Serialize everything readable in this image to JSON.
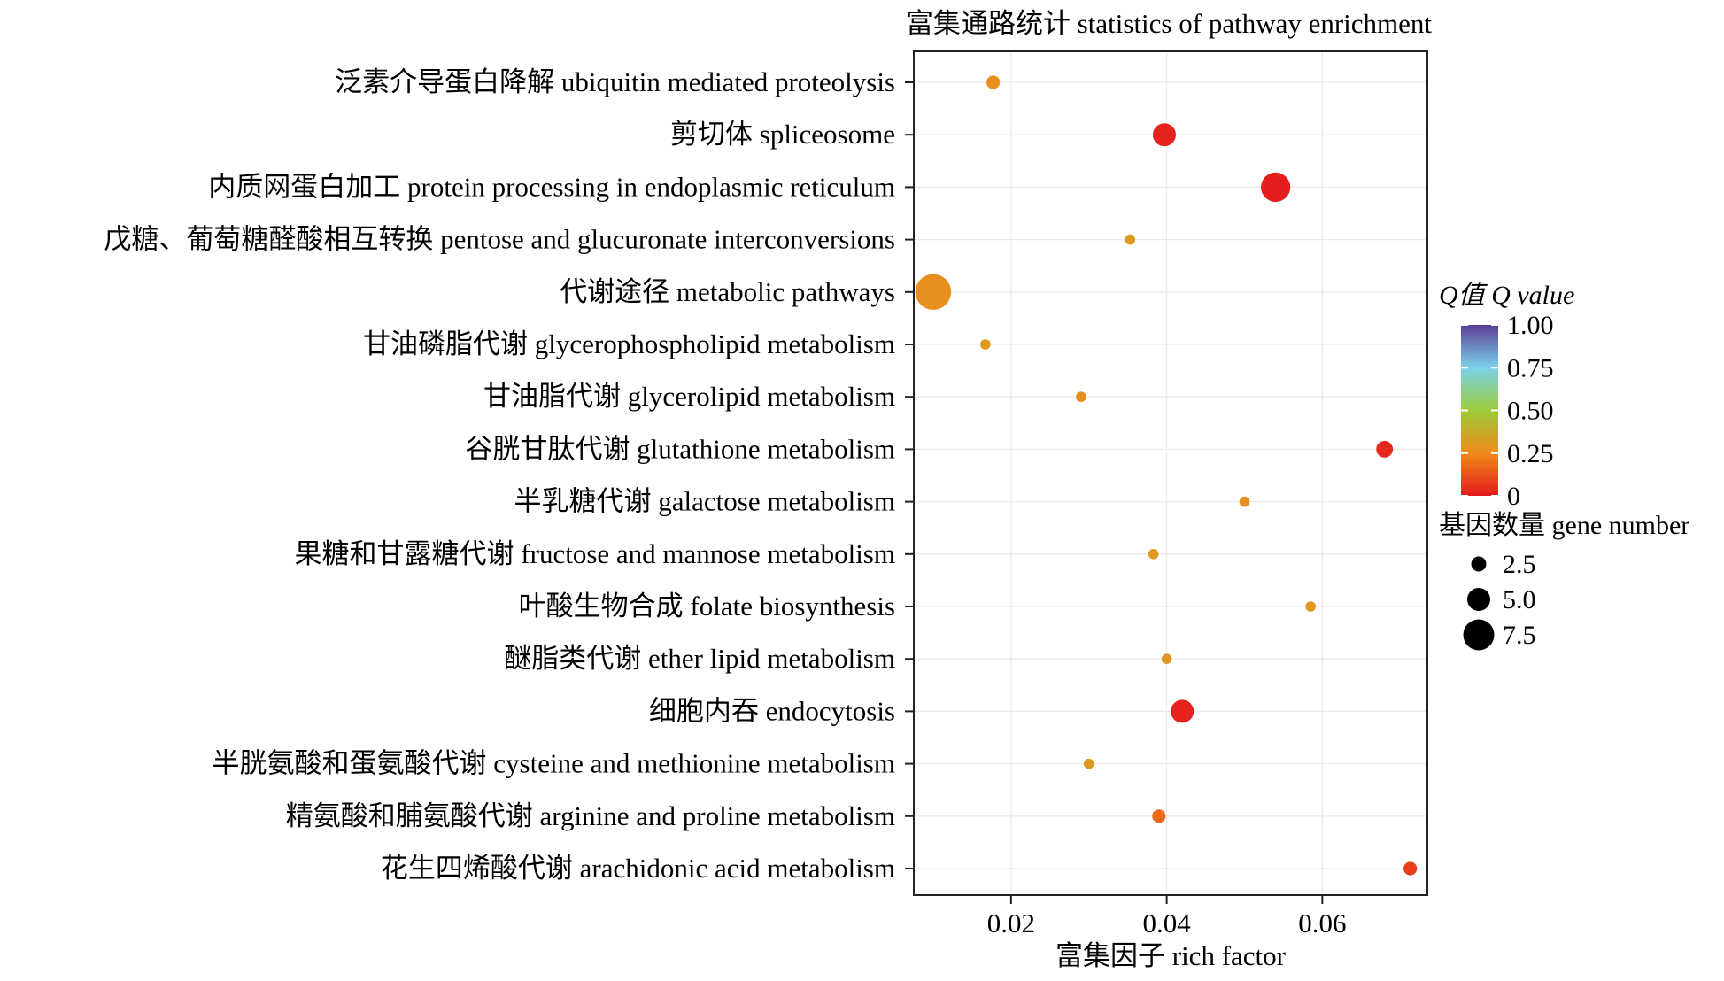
{
  "chart_data": {
    "type": "scatter",
    "title": "富集通路统计 statistics of pathway enrichment",
    "xlabel": "富集因子 rich factor",
    "ylabel": "",
    "xlim": [
      0.0075,
      0.0735
    ],
    "xticks": [
      0.02,
      0.04,
      0.06
    ],
    "xtick_labels": [
      "0.02",
      "0.04",
      "0.06"
    ],
    "grid": true,
    "categories": [
      "泛素介导蛋白降解 ubiquitin mediated proteolysis",
      "剪切体 spliceosome",
      "内质网蛋白加工 protein processing in endoplasmic reticulum",
      "戊糖、葡萄糖醛酸相互转换 pentose and glucuronate interconversions",
      "代谢途径 metabolic pathways",
      "甘油磷脂代谢 glycerophospholipid metabolism",
      "甘油脂代谢 glycerolipid metabolism",
      "谷胱甘肽代谢 glutathione metabolism",
      "半乳糖代谢 galactose metabolism",
      "果糖和甘露糖代谢 fructose and mannose metabolism",
      "叶酸生物合成 folate biosynthesis",
      "醚脂类代谢 ether lipid metabolism",
      "细胞内吞 endocytosis",
      "半胱氨酸和蛋氨酸代谢  cysteine and methionine metabolism",
      "精氨酸和脯氨酸代谢  arginine and proline metabolism",
      "花生四烯酸代谢  arachidonic acid metabolism"
    ],
    "points": [
      {
        "x": 0.0177,
        "gene_number": 2,
        "q_value": 0.27
      },
      {
        "x": 0.0397,
        "gene_number": 5,
        "q_value": 0.02
      },
      {
        "x": 0.054,
        "gene_number": 7,
        "q_value": 0.01
      },
      {
        "x": 0.0353,
        "gene_number": 1,
        "q_value": 0.3
      },
      {
        "x": 0.01,
        "gene_number": 9,
        "q_value": 0.27
      },
      {
        "x": 0.0167,
        "gene_number": 1,
        "q_value": 0.3
      },
      {
        "x": 0.029,
        "gene_number": 1,
        "q_value": 0.27
      },
      {
        "x": 0.068,
        "gene_number": 3,
        "q_value": 0.03
      },
      {
        "x": 0.05,
        "gene_number": 1,
        "q_value": 0.27
      },
      {
        "x": 0.0383,
        "gene_number": 1,
        "q_value": 0.3
      },
      {
        "x": 0.0585,
        "gene_number": 1,
        "q_value": 0.3
      },
      {
        "x": 0.04,
        "gene_number": 1,
        "q_value": 0.3
      },
      {
        "x": 0.042,
        "gene_number": 5,
        "q_value": 0.02
      },
      {
        "x": 0.03,
        "gene_number": 1,
        "q_value": 0.3
      },
      {
        "x": 0.039,
        "gene_number": 2,
        "q_value": 0.18
      },
      {
        "x": 0.0713,
        "gene_number": 2,
        "q_value": 0.08
      }
    ],
    "color_legend": {
      "title": "Q值 Q value",
      "ticks": [
        1.0,
        0.75,
        0.5,
        0.25,
        0
      ],
      "tick_labels": [
        "1.00",
        "0.75",
        "0.50",
        "0.25",
        "0"
      ],
      "colors_low_to_high": [
        "#e41a1c",
        "#f08a1a",
        "#9ccc3a",
        "#7bd2e8",
        "#5b3d97"
      ]
    },
    "size_legend": {
      "title": "基因数量 gene number",
      "values": [
        2.5,
        5.0,
        7.5
      ],
      "labels": [
        "2.5",
        "5.0",
        "7.5"
      ]
    }
  }
}
